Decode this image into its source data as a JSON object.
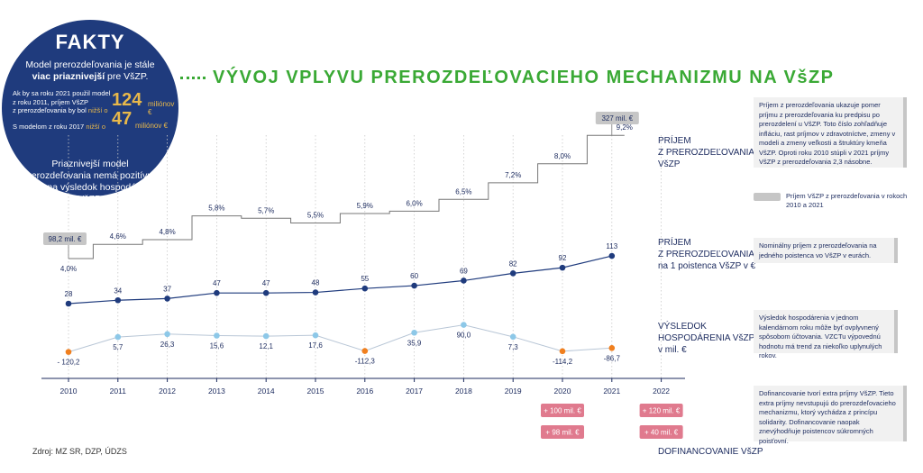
{
  "fakty": {
    "title": "FAKTY",
    "intro_part1": "Model prerozdeľovania je stále",
    "intro_bold": "viac priaznivejší",
    "intro_part2": " pre VšZP.",
    "row1_line1": "Ak by sa roku 2021 použil model",
    "row1_line2": "z roku 2011, príjem VšZP",
    "row1_line3": "z prerozdeľovania by bol",
    "row1_lower": "nižší o",
    "row1_value": "124",
    "row1_unit": "miliónov €",
    "row2_text": "S modelom z roku 2017",
    "row2_lower": "nižší o",
    "row2_value": "47",
    "row2_unit": "miliónov €",
    "outro": "Priaznivejší model prerozdeľovania nemá pozitívny vplyv na výsledok hospodárenia VšZP."
  },
  "title": "VÝVOJ VPLYVU PREROZDEĽOVACIEHO MECHANIZMU NA VšZP",
  "series_labels": {
    "prijem": [
      "PRÍJEM",
      "Z PREROZDEĽOVANIA",
      "VšZP"
    ],
    "poistenca": [
      "PRÍJEM",
      "Z PREROZDEĽOVANIA",
      "na 1 poistenca VšZP v €"
    ],
    "vysledok": [
      "VÝSLEDOK",
      "HOSPODÁRENIA VšZP",
      "v mil. €"
    ],
    "dofinancovanie": "DOFINANCOVANIE VšZP"
  },
  "notes": {
    "prijem": "Príjem z prerozdeľovania ukazuje pomer príjmu z prerozdeľovania ku predpisu po prerozdelení u VšZP. Toto číslo zohľadňuje infláciu, rast príjmov v zdravotníctve, zmeny v modeli a zmeny veľkosti a štruktúry kmeňa VšZP. Oproti roku 2010 stúpli v 2021 príjmy VšZP z prerozdeľovania 2,3 násobne.",
    "legend": "Príjem VšZP z prerozdeľovania v rokoch 2010 a 2021",
    "poistenca": "Nominálny príjem z prerozdeľovania na jedného poistenca vo VšZP v eurách.",
    "vysledok": "Výsledok hospodárenia v jednom kalendárnom roku môže byť ovplyvnený spôsobom účtovania. VZCTu výpovednú hodnotu má trend za niekoľko uplynulých rokov.",
    "dofinancovanie": "Dofinancovanie tvorí extra príjmy VšZP. Tieto extra príjmy nevstupujú do prerozdeľovacieho mechanizmu, ktorý vychádza z princípu solidarity. Dofinancovanie naopak znevýhodňuje poistencov súkromných poisťovní."
  },
  "source": "Zdroj: MZ SR, DZP, ÚDZS",
  "colors": {
    "navy": "#1f3b7d",
    "green": "#3aa935",
    "light_blue": "#8dc8e8",
    "orange": "#f07f1e",
    "pink": "#e07a8e",
    "grey": "#c6c6c6",
    "step_line": "#777777"
  },
  "chart_data": {
    "type": "line",
    "x": [
      "2010",
      "2011",
      "2012",
      "2013",
      "2014",
      "2015",
      "2016",
      "2017",
      "2018",
      "2019",
      "2020",
      "2021",
      "2022"
    ],
    "series": [
      {
        "name": "PRÍJEM Z PREROZDEĽOVANIA VšZP",
        "style": "step",
        "values": [
          4.0,
          4.6,
          4.8,
          5.8,
          5.7,
          5.5,
          5.9,
          6.0,
          6.5,
          7.2,
          8.0,
          9.2,
          null
        ],
        "labels": [
          "4,0%",
          "4,6%",
          "4,8%",
          "5,8%",
          "5,7%",
          "5,5%",
          "5,9%",
          "6,0%",
          "6,5%",
          "7,2%",
          "8,0%",
          "9,2%",
          ""
        ]
      },
      {
        "name": "PRÍJEM Z PREROZDEĽOVANIA na 1 poistenca VšZP v €",
        "values": [
          28,
          34,
          37,
          47,
          47,
          48,
          55,
          60,
          69,
          82,
          92,
          113,
          null
        ],
        "labels": [
          "28",
          "34",
          "37",
          "47",
          "47",
          "48",
          "55",
          "60",
          "69",
          "82",
          "92",
          "113",
          ""
        ]
      },
      {
        "name": "VÝSLEDOK HOSPODÁRENIA VšZP v mil. €",
        "values": [
          -120.2,
          5.7,
          26.3,
          15.6,
          12.1,
          17.6,
          -112.3,
          35.9,
          90.0,
          7.3,
          -114.2,
          -86.7,
          null
        ],
        "labels": [
          "- 120,2",
          "5,7",
          "26,3",
          "15,6",
          "12,1",
          "17,6",
          "-112,3",
          "35,9",
          "90,0",
          "7,3",
          "-114,2",
          "-86,7",
          ""
        ]
      }
    ],
    "annotations": [
      {
        "x": "2010",
        "text": "98,2 mil. €"
      },
      {
        "x": "2021",
        "text": "327 mil. €"
      }
    ],
    "dofinancovanie": [
      {
        "x": "2020",
        "values": [
          "+ 100 mil. €",
          "+ 98 mil. €"
        ]
      },
      {
        "x": "2022",
        "values": [
          "+ 120 mil. €",
          "+ 40 mil. €"
        ]
      }
    ]
  }
}
